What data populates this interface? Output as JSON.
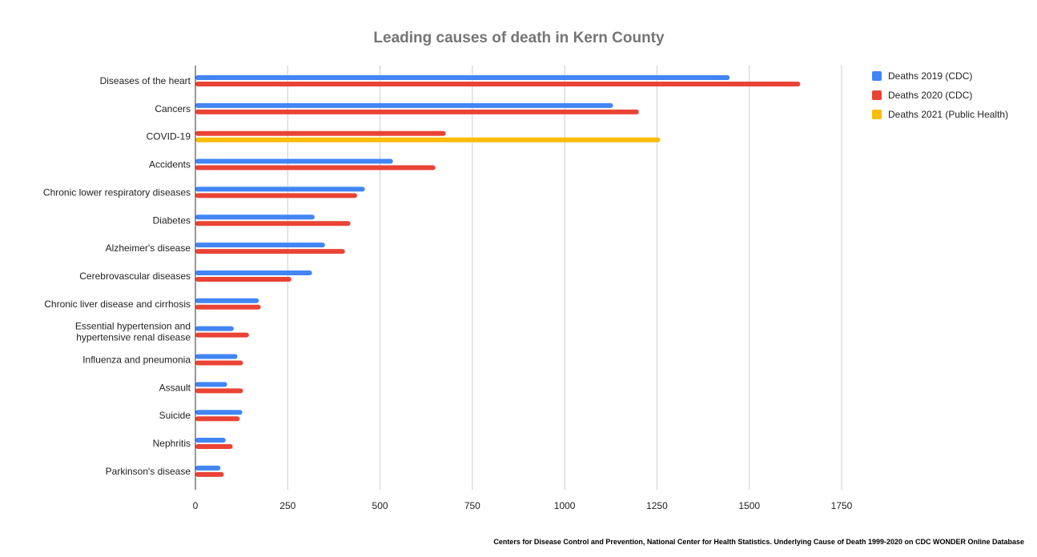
{
  "chart_data": {
    "type": "bar",
    "orientation": "horizontal",
    "title": "Leading causes of death in Kern County",
    "source": "Centers for Disease Control and Prevention, National Center for Health Statistics. Underlying Cause of Death 1999-2020 on CDC WONDER Online Database",
    "categories": [
      [
        "Diseases of the heart"
      ],
      [
        "Cancers"
      ],
      [
        "COVID-19"
      ],
      [
        "Accidents"
      ],
      [
        "Chronic lower respiratory diseases"
      ],
      [
        "Diabetes"
      ],
      [
        "Alzheimer's disease"
      ],
      [
        "Cerebrovascular diseases"
      ],
      [
        "Chronic liver disease and cirrhosis"
      ],
      [
        "Essential hypertension and",
        "hypertensive renal disease"
      ],
      [
        "Influenza and pneumonia"
      ],
      [
        "Assault"
      ],
      [
        "Suicide"
      ],
      [
        "Nephritis"
      ],
      [
        "Parkinson's disease"
      ]
    ],
    "series": [
      {
        "name": "Deaths 2019 (CDC)",
        "color": "#4285f4",
        "values": [
          1447,
          1131,
          null,
          535,
          459,
          323,
          351,
          316,
          172,
          104,
          114,
          86,
          127,
          82,
          68
        ]
      },
      {
        "name": "Deaths 2020 (CDC)",
        "color": "#ea4335",
        "values": [
          1638,
          1201,
          678,
          650,
          438,
          420,
          405,
          260,
          177,
          145,
          129,
          129,
          120,
          101,
          77
        ]
      },
      {
        "name": "Deaths 2021 (Public Health)",
        "color": "#fbbc04",
        "values": [
          null,
          null,
          1259,
          null,
          null,
          null,
          null,
          null,
          null,
          null,
          null,
          null,
          null,
          null,
          null
        ]
      }
    ],
    "xlim": [
      0,
      1750
    ],
    "xticks": [
      0,
      250,
      500,
      750,
      1000,
      1250,
      1500,
      1750
    ],
    "xlabel": "",
    "ylabel": "",
    "grid": true,
    "legend_position": "right"
  }
}
